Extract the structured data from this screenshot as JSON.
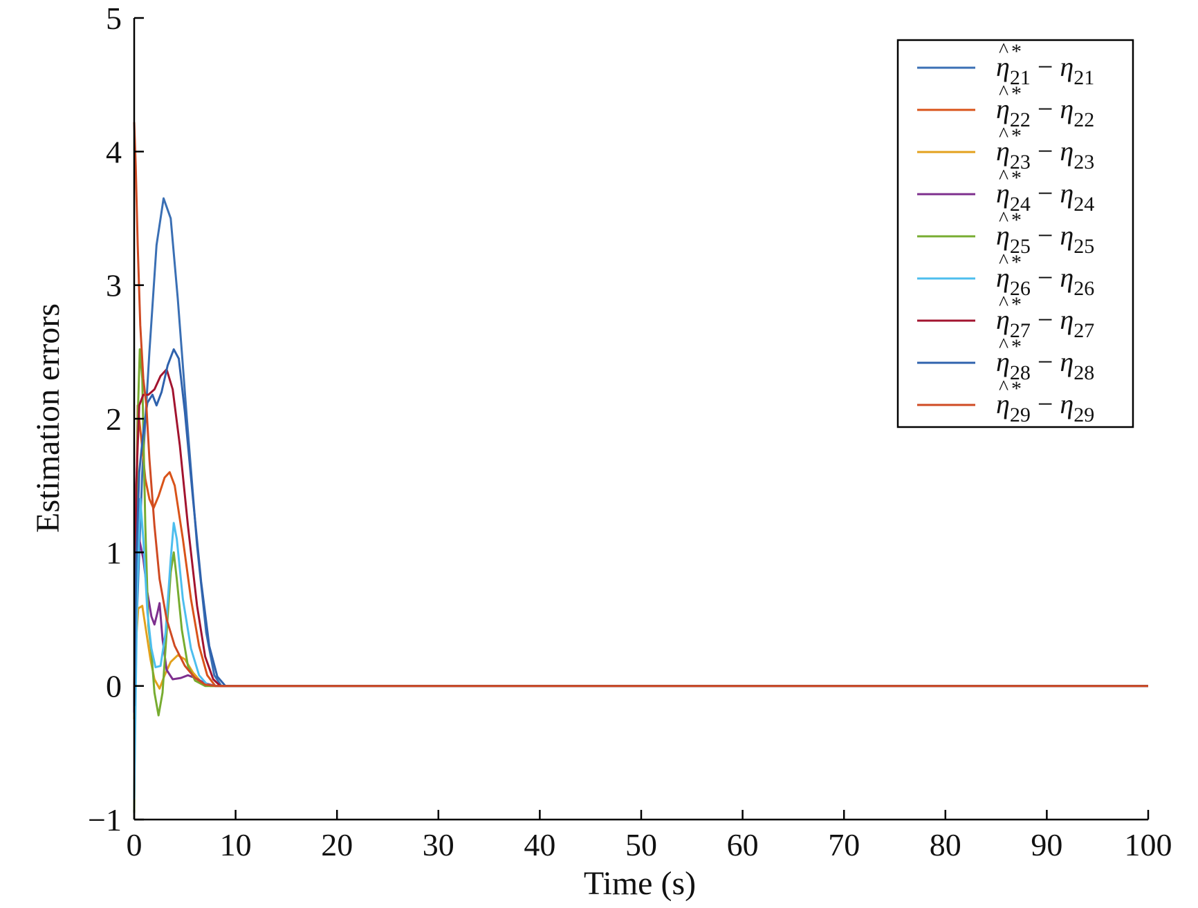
{
  "chart_data": {
    "type": "line",
    "xlabel": "Time (s)",
    "ylabel": "Estimation errors",
    "xlim": [
      0,
      100
    ],
    "ylim": [
      -1,
      5
    ],
    "x_ticks": [
      "0",
      "10",
      "20",
      "30",
      "40",
      "50",
      "60",
      "70",
      "80",
      "90",
      "100"
    ],
    "y_ticks": [
      "−1",
      "0",
      "1",
      "2",
      "3",
      "4",
      "5"
    ],
    "legend_position": "top-right",
    "grid": false,
    "series": [
      {
        "name": "η̂*21 − η21",
        "symbol": "η",
        "sub": "21",
        "color": "#3a6fb4",
        "points": [
          [
            0,
            -0.2
          ],
          [
            0.3,
            0.6
          ],
          [
            0.8,
            1.6
          ],
          [
            1.5,
            2.5
          ],
          [
            2.2,
            3.3
          ],
          [
            2.9,
            3.65
          ],
          [
            3.6,
            3.5
          ],
          [
            4.3,
            2.9
          ],
          [
            5.2,
            2.0
          ],
          [
            6.2,
            1.05
          ],
          [
            7.1,
            0.4
          ],
          [
            7.9,
            0.08
          ],
          [
            8.6,
            0.0
          ],
          [
            100,
            0.0
          ]
        ]
      },
      {
        "name": "η̂*22 − η22",
        "symbol": "η",
        "sub": "22",
        "color": "#d95319",
        "points": [
          [
            0,
            -0.2
          ],
          [
            0.15,
            1.0
          ],
          [
            0.35,
            2.1
          ],
          [
            0.7,
            1.85
          ],
          [
            1.1,
            1.55
          ],
          [
            1.5,
            1.4
          ],
          [
            1.9,
            1.33
          ],
          [
            2.4,
            1.42
          ],
          [
            3.0,
            1.56
          ],
          [
            3.5,
            1.6
          ],
          [
            4.0,
            1.5
          ],
          [
            4.8,
            1.1
          ],
          [
            5.6,
            0.65
          ],
          [
            6.4,
            0.3
          ],
          [
            7.2,
            0.08
          ],
          [
            8.0,
            0.0
          ],
          [
            100,
            0.0
          ]
        ]
      },
      {
        "name": "η̂*23 − η23",
        "symbol": "η",
        "sub": "23",
        "color": "#e3a11c",
        "points": [
          [
            0,
            -0.25
          ],
          [
            0.15,
            0.3
          ],
          [
            0.4,
            0.58
          ],
          [
            0.8,
            0.6
          ],
          [
            1.2,
            0.4
          ],
          [
            1.6,
            0.2
          ],
          [
            2.0,
            0.05
          ],
          [
            2.5,
            -0.02
          ],
          [
            3.0,
            0.08
          ],
          [
            3.6,
            0.18
          ],
          [
            4.3,
            0.23
          ],
          [
            5.0,
            0.2
          ],
          [
            5.8,
            0.1
          ],
          [
            6.6,
            0.03
          ],
          [
            7.5,
            0.0
          ],
          [
            100,
            0.0
          ]
        ]
      },
      {
        "name": "η̂*24 − η24",
        "symbol": "η",
        "sub": "24",
        "color": "#7e2f8e",
        "points": [
          [
            0,
            -0.2
          ],
          [
            0.2,
            0.9
          ],
          [
            0.5,
            1.1
          ],
          [
            0.9,
            0.95
          ],
          [
            1.3,
            0.7
          ],
          [
            1.7,
            0.52
          ],
          [
            2.0,
            0.46
          ],
          [
            2.3,
            0.55
          ],
          [
            2.5,
            0.62
          ],
          [
            2.8,
            0.35
          ],
          [
            3.2,
            0.12
          ],
          [
            3.8,
            0.05
          ],
          [
            4.6,
            0.06
          ],
          [
            5.3,
            0.08
          ],
          [
            6.0,
            0.06
          ],
          [
            7.0,
            0.02
          ],
          [
            8.0,
            0.0
          ],
          [
            100,
            0.0
          ]
        ]
      },
      {
        "name": "η̂*25 − η25",
        "symbol": "η",
        "sub": "25",
        "color": "#77ac30",
        "points": [
          [
            0,
            -0.95
          ],
          [
            0.15,
            0.6
          ],
          [
            0.35,
            2.0
          ],
          [
            0.55,
            2.52
          ],
          [
            0.8,
            2.3
          ],
          [
            1.1,
            1.2
          ],
          [
            1.4,
            0.45
          ],
          [
            1.7,
            0.25
          ],
          [
            2.0,
            -0.05
          ],
          [
            2.4,
            -0.22
          ],
          [
            2.8,
            -0.05
          ],
          [
            3.2,
            0.4
          ],
          [
            3.6,
            0.85
          ],
          [
            3.9,
            1.0
          ],
          [
            4.2,
            0.8
          ],
          [
            4.7,
            0.42
          ],
          [
            5.3,
            0.15
          ],
          [
            6.0,
            0.04
          ],
          [
            7.0,
            0.0
          ],
          [
            100,
            0.0
          ]
        ]
      },
      {
        "name": "η̂*26 − η26",
        "symbol": "η",
        "sub": "26",
        "color": "#4dbeee",
        "points": [
          [
            0,
            -0.85
          ],
          [
            0.1,
            -0.3
          ],
          [
            0.3,
            0.7
          ],
          [
            0.6,
            1.4
          ],
          [
            0.9,
            1.1
          ],
          [
            1.3,
            0.55
          ],
          [
            1.7,
            0.28
          ],
          [
            2.1,
            0.14
          ],
          [
            2.6,
            0.15
          ],
          [
            3.1,
            0.4
          ],
          [
            3.6,
            0.95
          ],
          [
            3.9,
            1.22
          ],
          [
            4.2,
            1.1
          ],
          [
            4.8,
            0.65
          ],
          [
            5.6,
            0.28
          ],
          [
            6.4,
            0.08
          ],
          [
            7.2,
            0.01
          ],
          [
            8.0,
            0.0
          ],
          [
            100,
            0.0
          ]
        ]
      },
      {
        "name": "η̂*27 − η27",
        "symbol": "η",
        "sub": "27",
        "color": "#a2142f",
        "points": [
          [
            0,
            -0.15
          ],
          [
            0.2,
            1.5
          ],
          [
            0.5,
            2.1
          ],
          [
            0.9,
            2.18
          ],
          [
            1.4,
            2.18
          ],
          [
            2.0,
            2.22
          ],
          [
            2.6,
            2.32
          ],
          [
            3.2,
            2.37
          ],
          [
            3.8,
            2.22
          ],
          [
            4.5,
            1.8
          ],
          [
            5.3,
            1.2
          ],
          [
            6.2,
            0.6
          ],
          [
            7.0,
            0.22
          ],
          [
            7.8,
            0.05
          ],
          [
            8.5,
            0.0
          ],
          [
            100,
            0.0
          ]
        ]
      },
      {
        "name": "η̂*28 − η28",
        "symbol": "η",
        "sub": "28",
        "color": "#2f62ad",
        "points": [
          [
            0,
            -0.15
          ],
          [
            0.2,
            0.9
          ],
          [
            0.5,
            1.6
          ],
          [
            0.9,
            1.9
          ],
          [
            1.3,
            2.12
          ],
          [
            1.8,
            2.18
          ],
          [
            2.2,
            2.1
          ],
          [
            2.7,
            2.2
          ],
          [
            3.3,
            2.4
          ],
          [
            3.9,
            2.52
          ],
          [
            4.4,
            2.45
          ],
          [
            5.0,
            2.05
          ],
          [
            5.8,
            1.4
          ],
          [
            6.6,
            0.78
          ],
          [
            7.4,
            0.3
          ],
          [
            8.2,
            0.07
          ],
          [
            9.0,
            0.0
          ],
          [
            100,
            0.0
          ]
        ]
      },
      {
        "name": "η̂*29 − η29",
        "symbol": "η",
        "sub": "29",
        "color": "#cf4a22",
        "points": [
          [
            0,
            4.22
          ],
          [
            0.15,
            3.9
          ],
          [
            0.35,
            3.3
          ],
          [
            0.6,
            2.7
          ],
          [
            0.9,
            2.3
          ],
          [
            1.2,
            2.1
          ],
          [
            1.5,
            1.7
          ],
          [
            2.0,
            1.2
          ],
          [
            2.5,
            0.8
          ],
          [
            3.2,
            0.5
          ],
          [
            4.0,
            0.3
          ],
          [
            5.0,
            0.15
          ],
          [
            6.0,
            0.06
          ],
          [
            7.0,
            0.01
          ],
          [
            8.0,
            0.0
          ],
          [
            100,
            0.0
          ]
        ]
      }
    ]
  }
}
